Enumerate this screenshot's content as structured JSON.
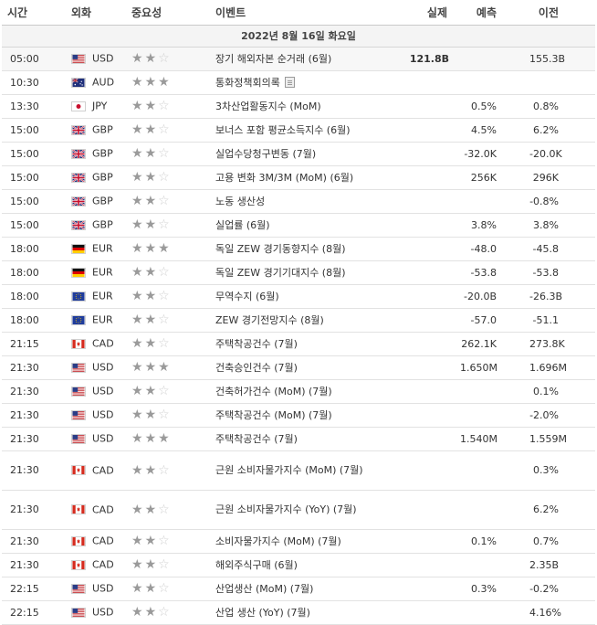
{
  "header": {
    "time": "시간",
    "currency": "외화",
    "importance": "중요성",
    "event": "이벤트",
    "actual": "실제",
    "forecast": "예측",
    "previous": "이전"
  },
  "date_label": "2022년 8월 16일 화요일",
  "rows": [
    {
      "time": "05:00",
      "flag": "us",
      "currency": "USD",
      "stars": 2,
      "event": "장기 해외자본 순거래 (6월)",
      "actual": "121.8B",
      "forecast": "",
      "previous": "155.3B"
    },
    {
      "time": "10:30",
      "flag": "au",
      "currency": "AUD",
      "stars": 3,
      "event": "통화정책회의록",
      "actual": "",
      "forecast": "",
      "previous": "",
      "doc_icon": "document-icon"
    },
    {
      "time": "13:30",
      "flag": "jp",
      "currency": "JPY",
      "stars": 2,
      "event": "3차산업활동지수 (MoM)",
      "actual": "",
      "forecast": "0.5%",
      "previous": "0.8%"
    },
    {
      "time": "15:00",
      "flag": "gb",
      "currency": "GBP",
      "stars": 2,
      "event": "보너스 포함 평균소득지수 (6월)",
      "actual": "",
      "forecast": "4.5%",
      "previous": "6.2%"
    },
    {
      "time": "15:00",
      "flag": "gb",
      "currency": "GBP",
      "stars": 2,
      "event": "실업수당청구변동 (7월)",
      "actual": "",
      "forecast": "-32.0K",
      "previous": "-20.0K"
    },
    {
      "time": "15:00",
      "flag": "gb",
      "currency": "GBP",
      "stars": 2,
      "event": "고용 변화 3M/3M (MoM) (6월)",
      "actual": "",
      "forecast": "256K",
      "previous": "296K"
    },
    {
      "time": "15:00",
      "flag": "gb",
      "currency": "GBP",
      "stars": 2,
      "event": "노동 생산성",
      "actual": "",
      "forecast": "",
      "previous": "-0.8%"
    },
    {
      "time": "15:00",
      "flag": "gb",
      "currency": "GBP",
      "stars": 2,
      "event": "실업률 (6월)",
      "actual": "",
      "forecast": "3.8%",
      "previous": "3.8%"
    },
    {
      "time": "18:00",
      "flag": "de",
      "currency": "EUR",
      "stars": 3,
      "event": "독일 ZEW 경기동향지수 (8월)",
      "actual": "",
      "forecast": "-48.0",
      "previous": "-45.8"
    },
    {
      "time": "18:00",
      "flag": "de",
      "currency": "EUR",
      "stars": 2,
      "event": "독일 ZEW 경기기대지수 (8월)",
      "actual": "",
      "forecast": "-53.8",
      "previous": "-53.8"
    },
    {
      "time": "18:00",
      "flag": "eu",
      "currency": "EUR",
      "stars": 2,
      "event": "무역수지 (6월)",
      "actual": "",
      "forecast": "-20.0B",
      "previous": "-26.3B"
    },
    {
      "time": "18:00",
      "flag": "eu",
      "currency": "EUR",
      "stars": 2,
      "event": "ZEW 경기전망지수 (8월)",
      "actual": "",
      "forecast": "-57.0",
      "previous": "-51.1"
    },
    {
      "time": "21:15",
      "flag": "ca",
      "currency": "CAD",
      "stars": 2,
      "event": "주택착공건수 (7월)",
      "actual": "",
      "forecast": "262.1K",
      "previous": "273.8K"
    },
    {
      "time": "21:30",
      "flag": "us",
      "currency": "USD",
      "stars": 3,
      "event": "건축승인건수 (7월)",
      "actual": "",
      "forecast": "1.650M",
      "previous": "1.696M"
    },
    {
      "time": "21:30",
      "flag": "us",
      "currency": "USD",
      "stars": 2,
      "event": "건축허가건수 (MoM) (7월)",
      "actual": "",
      "forecast": "",
      "previous": "0.1%"
    },
    {
      "time": "21:30",
      "flag": "us",
      "currency": "USD",
      "stars": 2,
      "event": "주택착공건수 (MoM) (7월)",
      "actual": "",
      "forecast": "",
      "previous": "-2.0%"
    },
    {
      "time": "21:30",
      "flag": "us",
      "currency": "USD",
      "stars": 3,
      "event": "주택착공건수 (7월)",
      "actual": "",
      "forecast": "1.540M",
      "previous": "1.559M"
    },
    {
      "time": "21:30",
      "flag": "ca",
      "currency": "CAD",
      "stars": 2,
      "event": "근원 소비자물가지수 (MoM) (7월)",
      "actual": "",
      "forecast": "",
      "previous": "0.3%",
      "tall": true
    },
    {
      "time": "21:30",
      "flag": "ca",
      "currency": "CAD",
      "stars": 2,
      "event": "근원 소비자물가지수 (YoY) (7월)",
      "actual": "",
      "forecast": "",
      "previous": "6.2%",
      "tall": true
    },
    {
      "time": "21:30",
      "flag": "ca",
      "currency": "CAD",
      "stars": 2,
      "event": "소비자물가지수 (MoM) (7월)",
      "actual": "",
      "forecast": "0.1%",
      "previous": "0.7%"
    },
    {
      "time": "21:30",
      "flag": "ca",
      "currency": "CAD",
      "stars": 2,
      "event": "해외주식구매 (6월)",
      "actual": "",
      "forecast": "",
      "previous": "2.35B"
    },
    {
      "time": "22:15",
      "flag": "us",
      "currency": "USD",
      "stars": 2,
      "event": "산업생산 (MoM) (7월)",
      "actual": "",
      "forecast": "0.3%",
      "previous": "-0.2%"
    },
    {
      "time": "22:15",
      "flag": "us",
      "currency": "USD",
      "stars": 2,
      "event": "산업 생산 (YoY) (7월)",
      "actual": "",
      "forecast": "",
      "previous": "4.16%"
    }
  ]
}
